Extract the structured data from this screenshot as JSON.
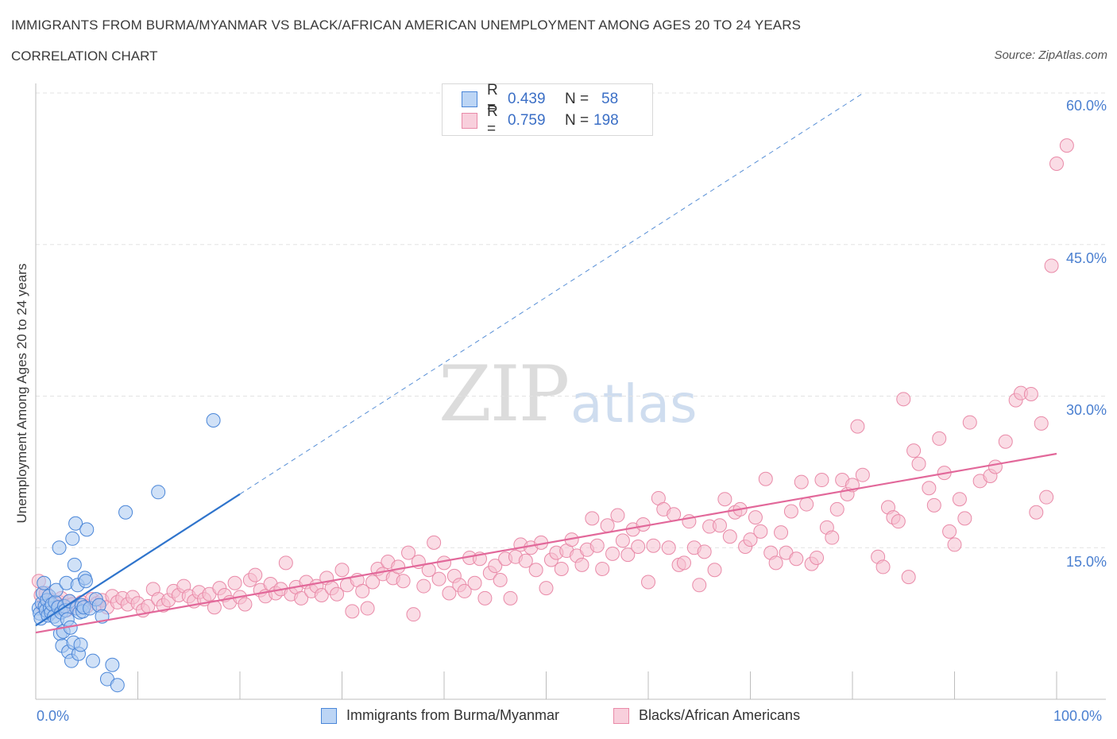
{
  "title": "IMMIGRANTS FROM BURMA/MYANMAR VS BLACK/AFRICAN AMERICAN UNEMPLOYMENT AMONG AGES 20 TO 24 YEARS",
  "subtitle": "CORRELATION CHART",
  "source": "Source: ZipAtlas.com",
  "watermark": {
    "zip": "ZIP",
    "atlas": "atlas"
  },
  "legend_top": {
    "r_label": "R =",
    "n_label": "N =",
    "rows": [
      {
        "r": "0.439",
        "n": "58"
      },
      {
        "r": "0.759",
        "n": "198"
      }
    ]
  },
  "colors": {
    "blue_fill": "#a9c8f0",
    "blue_stroke": "#4a86d8",
    "blue_line": "#2f74cc",
    "pink_fill": "#f6c0d0",
    "pink_stroke": "#e98aa8",
    "pink_line": "#e2689a",
    "tick_text": "#4a7fd0",
    "grid": "#e3e3e3"
  },
  "chart_data": {
    "type": "scatter",
    "xlabel": "",
    "ylabel": "Unemployment Among Ages 20 to 24 years",
    "xlim": [
      0,
      100
    ],
    "ylim": [
      0,
      60
    ],
    "x_tick_labels": [
      "0.0%",
      "100.0%"
    ],
    "y_tick_labels": [
      "15.0%",
      "30.0%",
      "45.0%",
      "60.0%"
    ],
    "y_ticks": [
      15,
      30,
      45,
      60
    ],
    "series": [
      {
        "name": "Immigrants from Burma/Myanmar",
        "R": 0.439,
        "N": 58,
        "trend": {
          "x0": 0,
          "y0": 7.3,
          "x1": 20,
          "y1": 20.3,
          "dashed_extension_to_x": 81
        },
        "points": [
          [
            0.3,
            9.0
          ],
          [
            0.4,
            8.5
          ],
          [
            0.5,
            8.0
          ],
          [
            0.6,
            9.5
          ],
          [
            0.7,
            10.5
          ],
          [
            0.8,
            11.5
          ],
          [
            0.9,
            9.2
          ],
          [
            1.0,
            8.8
          ],
          [
            1.1,
            9.8
          ],
          [
            1.2,
            8.3
          ],
          [
            1.3,
            10.2
          ],
          [
            1.4,
            9.0
          ],
          [
            1.5,
            8.6
          ],
          [
            1.6,
            9.4
          ],
          [
            1.8,
            8.2
          ],
          [
            1.9,
            9.6
          ],
          [
            2.0,
            10.8
          ],
          [
            2.1,
            7.9
          ],
          [
            2.2,
            9.1
          ],
          [
            2.3,
            15.0
          ],
          [
            2.4,
            6.5
          ],
          [
            2.5,
            8.6
          ],
          [
            2.6,
            5.3
          ],
          [
            2.7,
            6.7
          ],
          [
            2.8,
            9.2
          ],
          [
            2.9,
            8.8
          ],
          [
            3.0,
            11.5
          ],
          [
            3.1,
            7.9
          ],
          [
            3.2,
            4.7
          ],
          [
            3.3,
            9.7
          ],
          [
            3.4,
            7.1
          ],
          [
            3.5,
            3.8
          ],
          [
            3.6,
            15.9
          ],
          [
            3.7,
            5.6
          ],
          [
            3.8,
            13.3
          ],
          [
            3.9,
            17.4
          ],
          [
            4.0,
            9.0
          ],
          [
            4.1,
            11.3
          ],
          [
            4.2,
            4.5
          ],
          [
            4.3,
            8.6
          ],
          [
            4.4,
            5.4
          ],
          [
            4.5,
            9.3
          ],
          [
            4.6,
            8.7
          ],
          [
            4.7,
            9.1
          ],
          [
            4.8,
            12.0
          ],
          [
            4.9,
            11.7
          ],
          [
            5.0,
            16.8
          ],
          [
            5.3,
            9.0
          ],
          [
            5.6,
            3.8
          ],
          [
            5.9,
            9.9
          ],
          [
            6.2,
            9.3
          ],
          [
            6.5,
            8.2
          ],
          [
            7.0,
            2.0
          ],
          [
            7.5,
            3.4
          ],
          [
            8.0,
            1.4
          ],
          [
            8.8,
            18.5
          ],
          [
            12.0,
            20.5
          ],
          [
            17.4,
            27.6
          ]
        ]
      },
      {
        "name": "Blacks/African Americans",
        "R": 0.759,
        "N": 198,
        "trend": {
          "x0": 0,
          "y0": 6.6,
          "x1": 100,
          "y1": 24.3
        },
        "points": [
          [
            0.3,
            11.7
          ],
          [
            0.5,
            10.3
          ],
          [
            0.7,
            9.2
          ],
          [
            1.0,
            10.5
          ],
          [
            1.2,
            9.1
          ],
          [
            1.5,
            9.8
          ],
          [
            1.8,
            9.4
          ],
          [
            2.0,
            8.9
          ],
          [
            2.3,
            9.6
          ],
          [
            2.5,
            10.0
          ],
          [
            2.8,
            9.3
          ],
          [
            3.0,
            8.8
          ],
          [
            3.3,
            9.7
          ],
          [
            3.6,
            9.4
          ],
          [
            4.0,
            9.0
          ],
          [
            4.5,
            9.6
          ],
          [
            5.0,
            9.2
          ],
          [
            5.5,
            9.9
          ],
          [
            6.0,
            9.5
          ],
          [
            6.5,
            9.8
          ],
          [
            7.0,
            9.1
          ],
          [
            7.5,
            10.2
          ],
          [
            8.0,
            9.6
          ],
          [
            8.5,
            10.0
          ],
          [
            9.0,
            9.4
          ],
          [
            9.5,
            10.1
          ],
          [
            10.0,
            9.5
          ],
          [
            10.5,
            8.8
          ],
          [
            11.0,
            9.2
          ],
          [
            11.5,
            10.9
          ],
          [
            12.0,
            9.9
          ],
          [
            12.5,
            9.3
          ],
          [
            13.0,
            9.8
          ],
          [
            13.5,
            10.7
          ],
          [
            14.0,
            10.3
          ],
          [
            14.5,
            11.2
          ],
          [
            15.0,
            10.2
          ],
          [
            15.5,
            9.7
          ],
          [
            16.0,
            10.6
          ],
          [
            16.5,
            9.9
          ],
          [
            17.0,
            10.4
          ],
          [
            17.5,
            9.1
          ],
          [
            18.0,
            11.0
          ],
          [
            18.5,
            10.3
          ],
          [
            19.0,
            9.6
          ],
          [
            19.5,
            11.5
          ],
          [
            20.0,
            10.1
          ],
          [
            20.5,
            9.4
          ],
          [
            21.0,
            11.8
          ],
          [
            21.5,
            12.3
          ],
          [
            22.0,
            10.8
          ],
          [
            22.5,
            10.2
          ],
          [
            23.0,
            11.4
          ],
          [
            23.5,
            10.5
          ],
          [
            24.0,
            10.9
          ],
          [
            24.5,
            13.5
          ],
          [
            25.0,
            10.4
          ],
          [
            25.5,
            11.1
          ],
          [
            26.0,
            10.0
          ],
          [
            26.5,
            11.6
          ],
          [
            27.0,
            10.7
          ],
          [
            27.5,
            11.2
          ],
          [
            28.0,
            10.3
          ],
          [
            28.5,
            12.0
          ],
          [
            29.0,
            11.0
          ],
          [
            29.5,
            10.4
          ],
          [
            30.0,
            12.8
          ],
          [
            30.5,
            11.3
          ],
          [
            31.0,
            8.7
          ],
          [
            31.5,
            11.8
          ],
          [
            32.0,
            10.7
          ],
          [
            32.5,
            9.0
          ],
          [
            33.0,
            11.6
          ],
          [
            33.5,
            12.9
          ],
          [
            34.0,
            12.4
          ],
          [
            34.5,
            13.6
          ],
          [
            35.0,
            12.0
          ],
          [
            35.5,
            13.1
          ],
          [
            36.0,
            11.7
          ],
          [
            36.5,
            14.5
          ],
          [
            37.0,
            8.4
          ],
          [
            37.5,
            13.6
          ],
          [
            38.0,
            11.2
          ],
          [
            38.5,
            12.8
          ],
          [
            39.0,
            15.5
          ],
          [
            39.5,
            11.9
          ],
          [
            40.0,
            13.5
          ],
          [
            40.5,
            10.5
          ],
          [
            41.0,
            12.2
          ],
          [
            41.5,
            11.3
          ],
          [
            42.0,
            10.7
          ],
          [
            42.5,
            14.0
          ],
          [
            43.0,
            11.5
          ],
          [
            43.5,
            13.9
          ],
          [
            44.0,
            10.0
          ],
          [
            44.5,
            12.5
          ],
          [
            45.0,
            13.2
          ],
          [
            45.5,
            11.8
          ],
          [
            46.0,
            13.9
          ],
          [
            46.5,
            10.0
          ],
          [
            47.0,
            14.1
          ],
          [
            47.5,
            15.3
          ],
          [
            48.0,
            13.7
          ],
          [
            48.5,
            15.0
          ],
          [
            49.0,
            12.8
          ],
          [
            49.5,
            15.5
          ],
          [
            50.0,
            11.0
          ],
          [
            50.5,
            13.8
          ],
          [
            51.0,
            14.5
          ],
          [
            51.5,
            12.9
          ],
          [
            52.0,
            14.7
          ],
          [
            52.5,
            15.8
          ],
          [
            53.0,
            14.2
          ],
          [
            53.5,
            13.3
          ],
          [
            54.0,
            14.8
          ],
          [
            54.5,
            17.9
          ],
          [
            55.0,
            15.2
          ],
          [
            55.5,
            12.9
          ],
          [
            56.0,
            17.2
          ],
          [
            56.5,
            14.4
          ],
          [
            57.0,
            18.2
          ],
          [
            57.5,
            15.7
          ],
          [
            58.0,
            14.3
          ],
          [
            58.5,
            16.8
          ],
          [
            59.0,
            15.1
          ],
          [
            59.5,
            17.3
          ],
          [
            60.0,
            11.6
          ],
          [
            60.5,
            15.2
          ],
          [
            61.0,
            19.9
          ],
          [
            61.5,
            18.8
          ],
          [
            62.0,
            15.0
          ],
          [
            62.5,
            18.3
          ],
          [
            63.0,
            13.3
          ],
          [
            63.5,
            13.5
          ],
          [
            64.0,
            17.6
          ],
          [
            64.5,
            15.0
          ],
          [
            65.0,
            11.3
          ],
          [
            65.5,
            14.6
          ],
          [
            66.0,
            17.1
          ],
          [
            66.5,
            12.8
          ],
          [
            67.0,
            17.2
          ],
          [
            67.5,
            19.8
          ],
          [
            68.0,
            16.1
          ],
          [
            68.5,
            18.5
          ],
          [
            69.0,
            18.8
          ],
          [
            69.5,
            15.1
          ],
          [
            70.0,
            15.8
          ],
          [
            70.5,
            18.0
          ],
          [
            71.0,
            16.6
          ],
          [
            71.5,
            21.8
          ],
          [
            72.0,
            14.5
          ],
          [
            72.5,
            13.5
          ],
          [
            73.0,
            16.5
          ],
          [
            73.5,
            14.5
          ],
          [
            74.0,
            18.6
          ],
          [
            74.5,
            13.9
          ],
          [
            75.0,
            21.5
          ],
          [
            75.5,
            19.3
          ],
          [
            76.0,
            13.4
          ],
          [
            76.5,
            14.0
          ],
          [
            77.0,
            21.7
          ],
          [
            77.5,
            17.0
          ],
          [
            78.0,
            16.0
          ],
          [
            78.5,
            18.8
          ],
          [
            79.0,
            21.7
          ],
          [
            79.5,
            20.3
          ],
          [
            80.0,
            21.2
          ],
          [
            80.5,
            27.0
          ],
          [
            81.0,
            22.2
          ],
          [
            82.5,
            14.1
          ],
          [
            83.0,
            13.1
          ],
          [
            83.5,
            19.0
          ],
          [
            84.0,
            18.0
          ],
          [
            84.5,
            17.6
          ],
          [
            85.0,
            29.7
          ],
          [
            85.5,
            12.1
          ],
          [
            86.0,
            24.6
          ],
          [
            86.5,
            23.3
          ],
          [
            87.5,
            20.9
          ],
          [
            88.0,
            19.2
          ],
          [
            88.5,
            25.8
          ],
          [
            89.0,
            22.4
          ],
          [
            89.5,
            16.6
          ],
          [
            90.0,
            15.3
          ],
          [
            90.5,
            19.8
          ],
          [
            91.0,
            17.9
          ],
          [
            91.5,
            27.4
          ],
          [
            92.5,
            21.6
          ],
          [
            93.5,
            22.1
          ],
          [
            94.0,
            23.0
          ],
          [
            95.0,
            25.5
          ],
          [
            96.0,
            29.6
          ],
          [
            96.5,
            30.3
          ],
          [
            97.5,
            30.2
          ],
          [
            98.0,
            18.5
          ],
          [
            99.0,
            20.0
          ],
          [
            98.5,
            27.3
          ],
          [
            99.5,
            42.9
          ],
          [
            100.0,
            53.0
          ],
          [
            101.0,
            54.8
          ]
        ]
      }
    ]
  },
  "bottom_legend": [
    "Immigrants from Burma/Myanmar",
    "Blacks/African Americans"
  ]
}
